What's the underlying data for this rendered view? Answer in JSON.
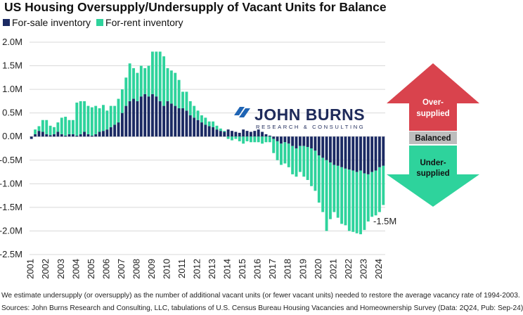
{
  "title": "US Housing Oversupply/Undersupply of Vacant Units for Balance",
  "legend": [
    {
      "label": "For-sale inventory",
      "color": "#1b2a63"
    },
    {
      "label": "For-rent inventory",
      "color": "#2ed39c"
    }
  ],
  "logo": {
    "main": "JOHN BURNS",
    "sub": "RESEARCH & CONSULTING",
    "icon": "jbrec-slash-logo-icon"
  },
  "indicator": {
    "over": "Over-\nsupplied",
    "balanced": "Balanced",
    "under": "Under-\nsupplied",
    "colors": {
      "over": "#d9434d",
      "balanced": "#bdbdbd",
      "under": "#2ed39c"
    }
  },
  "annotation": "-1.5M",
  "footnote": "We estimate undersupply (or oversupply) as the number of additional vacant units (or fewer vacant units) needed to restore the average vacancy rate of 1994-2003.",
  "source": "Sources: John Burns Research and Consulting, LLC, tabulations of U.S. Census Bureau Housing Vacancies and Homeownership Survey (Data: 2Q24, Pub: Sep-24)",
  "chart_data": {
    "type": "bar",
    "stacked": true,
    "title": "US Housing Oversupply/Undersupply of Vacant Units for Balance",
    "xlabel": "",
    "ylabel": "",
    "ylim": [
      -2.5,
      2.0
    ],
    "yticks": [
      2.0,
      1.5,
      1.0,
      0.5,
      0.0,
      -0.5,
      -1.0,
      -1.5,
      -2.0,
      -2.5
    ],
    "ytick_labels": [
      "2.0M",
      "1.5M",
      "1.0M",
      "0.5M",
      "0.0M",
      "-0.5M",
      "-1.0M",
      "-1.5M",
      "-2.0M",
      "-2.5M"
    ],
    "xtick_labels": [
      "2001",
      "2002",
      "2003",
      "2004",
      "2005",
      "2006",
      "2007",
      "2008",
      "2009",
      "2010",
      "2011",
      "2012",
      "2013",
      "2014",
      "2015",
      "2016",
      "2017",
      "2018",
      "2019",
      "2020",
      "2021",
      "2022",
      "2023",
      "2024"
    ],
    "grid": true,
    "legend_position": "top-left",
    "quarters_per_year": 4,
    "series": [
      {
        "name": "For-sale inventory",
        "color": "#1b2a63",
        "values": [
          -0.05,
          0.05,
          0.12,
          0.1,
          0.05,
          0.03,
          0.05,
          0.1,
          0.05,
          0.02,
          0.05,
          0.05,
          0.02,
          0.05,
          0.1,
          0.05,
          0.02,
          0.05,
          0.1,
          0.12,
          0.15,
          0.2,
          0.25,
          0.3,
          0.5,
          0.65,
          0.75,
          0.8,
          0.75,
          0.85,
          0.9,
          0.85,
          0.9,
          0.85,
          0.75,
          0.65,
          0.75,
          0.7,
          0.65,
          0.6,
          0.6,
          0.55,
          0.45,
          0.4,
          0.35,
          0.3,
          0.25,
          0.22,
          0.2,
          0.15,
          0.12,
          0.1,
          0.15,
          0.12,
          0.1,
          0.08,
          0.15,
          0.12,
          0.1,
          0.12,
          0.15,
          0.1,
          0.05,
          0.02,
          -0.05,
          -0.1,
          -0.15,
          -0.12,
          -0.15,
          -0.2,
          -0.25,
          -0.2,
          -0.2,
          -0.22,
          -0.25,
          -0.3,
          -0.4,
          -0.45,
          -0.5,
          -0.55,
          -0.6,
          -0.62,
          -0.65,
          -0.68,
          -0.7,
          -0.72,
          -0.75,
          -0.72,
          -0.78,
          -0.8,
          -0.75,
          -0.72,
          -0.65,
          -0.62
        ]
      },
      {
        "name": "For-rent inventory",
        "color": "#2ed39c",
        "values": [
          0.0,
          0.1,
          0.1,
          0.25,
          0.3,
          0.2,
          0.15,
          0.2,
          0.35,
          0.4,
          0.3,
          0.3,
          0.7,
          0.7,
          0.65,
          0.6,
          0.6,
          0.6,
          0.5,
          0.55,
          0.4,
          0.45,
          0.4,
          0.5,
          0.5,
          0.6,
          0.8,
          0.65,
          0.6,
          0.65,
          0.55,
          0.65,
          0.9,
          0.95,
          1.05,
          1.05,
          0.7,
          0.7,
          0.7,
          0.6,
          0.35,
          0.4,
          0.3,
          0.25,
          0.2,
          0.15,
          0.15,
          0.1,
          0.12,
          0.08,
          0.05,
          0.02,
          -0.05,
          -0.08,
          -0.05,
          -0.1,
          -0.15,
          -0.1,
          -0.12,
          -0.12,
          -0.12,
          -0.15,
          -0.12,
          -0.12,
          -0.3,
          -0.4,
          -0.45,
          -0.45,
          -0.5,
          -0.6,
          -0.6,
          -0.55,
          -0.65,
          -0.7,
          -0.8,
          -0.85,
          -1.0,
          -1.15,
          -1.5,
          -1.2,
          -1.0,
          -1.1,
          -1.2,
          -1.2,
          -1.3,
          -1.3,
          -1.3,
          -1.35,
          -1.2,
          -1.0,
          -0.95,
          -0.95,
          -0.95,
          -0.83
        ]
      }
    ]
  }
}
